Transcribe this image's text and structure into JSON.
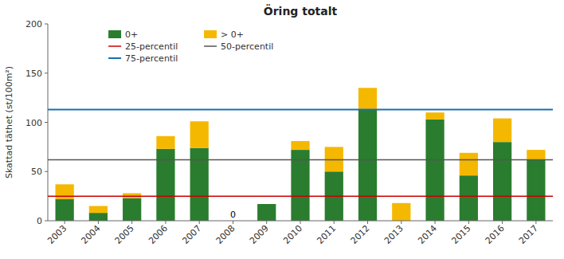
{
  "chart_data": {
    "type": "bar",
    "stacked": true,
    "title": "Öring totalt",
    "ylabel": "Skattad täthet (st/100m²)",
    "categories": [
      "2003",
      "2004",
      "2005",
      "2006",
      "2007",
      "2008",
      "2009",
      "2010",
      "2011",
      "2012",
      "2013",
      "2014",
      "2015",
      "2016",
      "2017"
    ],
    "series": [
      {
        "name": "0+",
        "color": "#2a7d2e",
        "values": [
          22,
          8,
          23,
          73,
          74,
          0,
          17,
          72,
          50,
          113,
          0,
          103,
          46,
          80,
          62
        ]
      },
      {
        "name": "> 0+",
        "color": "#f5b800",
        "values": [
          15,
          7,
          5,
          13,
          27,
          0,
          0,
          9,
          25,
          22,
          18,
          7,
          23,
          24,
          10
        ]
      }
    ],
    "reference_lines": [
      {
        "name": "25-percentil",
        "value": 25,
        "color": "#cc0000"
      },
      {
        "name": "50-percentil",
        "value": 62,
        "color": "#555555"
      },
      {
        "name": "75-percentil",
        "value": 113,
        "color": "#1a6faf"
      }
    ],
    "annotations": [
      {
        "text": "0",
        "category": "2008"
      }
    ],
    "ylim": [
      0,
      200
    ],
    "yticks": [
      0,
      50,
      100,
      150,
      200
    ],
    "grid": false,
    "legend": "upper left"
  }
}
